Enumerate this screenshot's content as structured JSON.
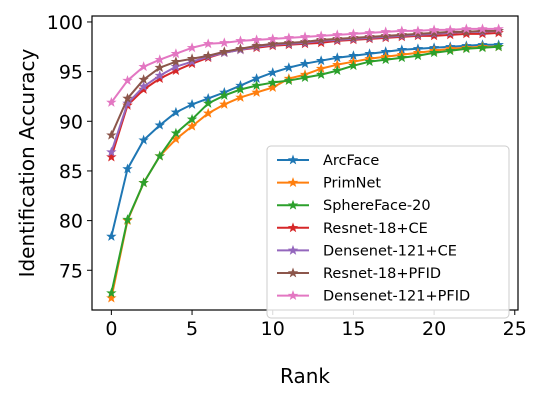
{
  "chart_data": {
    "type": "line",
    "xlabel": "Rank",
    "ylabel": "Identification Accuracy",
    "xlim": [
      -1.2,
      25.2
    ],
    "ylim": [
      71.0,
      100.6
    ],
    "xticks": [
      0,
      5,
      10,
      15,
      20,
      25
    ],
    "yticks": [
      75,
      80,
      85,
      90,
      95,
      100
    ],
    "grid": false,
    "legend_position": "lower-right",
    "x": [
      0,
      1,
      2,
      3,
      4,
      5,
      6,
      7,
      8,
      9,
      10,
      11,
      12,
      13,
      14,
      15,
      16,
      17,
      18,
      19,
      20,
      21,
      22,
      23,
      24
    ],
    "series": [
      {
        "name": "ArcFace",
        "color": "#1f77b4",
        "values": [
          78.4,
          85.2,
          88.1,
          89.6,
          90.9,
          91.7,
          92.3,
          92.9,
          93.6,
          94.3,
          94.9,
          95.4,
          95.8,
          96.1,
          96.4,
          96.6,
          96.8,
          97.0,
          97.2,
          97.3,
          97.4,
          97.5,
          97.6,
          97.7,
          97.7
        ]
      },
      {
        "name": "PrimNet",
        "color": "#ff7f0e",
        "values": [
          72.2,
          80.0,
          83.8,
          86.5,
          88.2,
          89.5,
          90.8,
          91.7,
          92.4,
          92.9,
          93.4,
          94.3,
          94.7,
          95.3,
          95.7,
          96.0,
          96.3,
          96.5,
          96.7,
          96.9,
          97.1,
          97.3,
          97.4,
          97.5,
          97.5
        ]
      },
      {
        "name": "SphereFace-20",
        "color": "#2ca02c",
        "values": [
          72.7,
          80.1,
          83.8,
          86.5,
          88.8,
          90.2,
          91.8,
          92.6,
          93.2,
          93.6,
          93.9,
          94.1,
          94.4,
          94.7,
          95.1,
          95.6,
          96.0,
          96.2,
          96.4,
          96.6,
          96.9,
          97.1,
          97.3,
          97.4,
          97.5
        ]
      },
      {
        "name": "Resnet-18+CE",
        "color": "#d62728",
        "values": [
          86.4,
          91.6,
          93.2,
          94.3,
          95.1,
          95.8,
          96.4,
          96.9,
          97.2,
          97.4,
          97.6,
          97.7,
          97.8,
          97.9,
          98.1,
          98.2,
          98.3,
          98.4,
          98.5,
          98.6,
          98.6,
          98.7,
          98.8,
          98.8,
          98.9
        ]
      },
      {
        "name": "Densenet-121+CE",
        "color": "#9467bd",
        "values": [
          86.9,
          91.8,
          93.5,
          94.6,
          95.5,
          96.0,
          96.5,
          96.9,
          97.2,
          97.5,
          97.7,
          97.8,
          97.9,
          98.1,
          98.2,
          98.3,
          98.4,
          98.5,
          98.6,
          98.7,
          98.8,
          98.9,
          99.0,
          99.0,
          99.1
        ]
      },
      {
        "name": "Resnet-18+PFID",
        "color": "#8c564b",
        "values": [
          88.6,
          92.3,
          94.2,
          95.4,
          96.0,
          96.3,
          96.6,
          97.0,
          97.3,
          97.6,
          97.8,
          97.9,
          98.0,
          98.2,
          98.3,
          98.4,
          98.5,
          98.6,
          98.7,
          98.8,
          98.9,
          99.0,
          99.0,
          99.1,
          99.1
        ]
      },
      {
        "name": "Densenet-121+PFID",
        "color": "#e377c2",
        "values": [
          91.9,
          94.1,
          95.5,
          96.2,
          96.8,
          97.4,
          97.8,
          97.9,
          98.1,
          98.2,
          98.3,
          98.4,
          98.5,
          98.6,
          98.7,
          98.8,
          98.9,
          99.0,
          99.1,
          99.1,
          99.2,
          99.2,
          99.3,
          99.3,
          99.3
        ]
      }
    ]
  }
}
